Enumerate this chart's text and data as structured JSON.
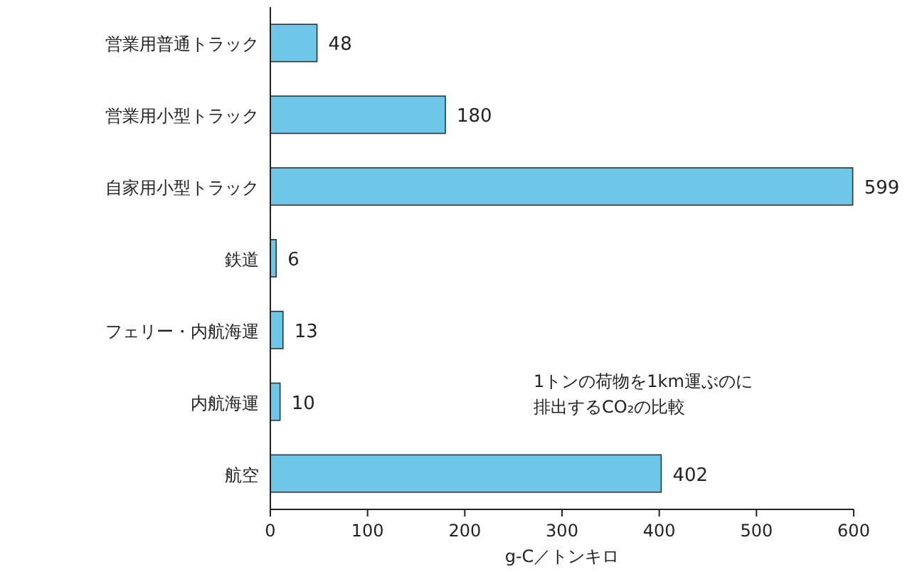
{
  "chart_data": {
    "type": "bar",
    "orientation": "horizontal",
    "categories": [
      "営業用普通トラック",
      "営業用小型トラック",
      "自家用小型トラック",
      "鉄道",
      "フェリー・内航海運",
      "内航海運",
      "航空"
    ],
    "values": [
      48,
      180,
      599,
      6,
      13,
      10,
      402
    ],
    "color": "#6ec6e8",
    "xlim": [
      0,
      600
    ],
    "xticks": [
      0,
      100,
      200,
      300,
      400,
      500,
      600
    ],
    "xlabel": "g-C／トンキロ",
    "data_labels": true,
    "annotations": [
      "1トンの荷物を1km運ぶのに",
      "排出するCO₂の比較"
    ]
  }
}
